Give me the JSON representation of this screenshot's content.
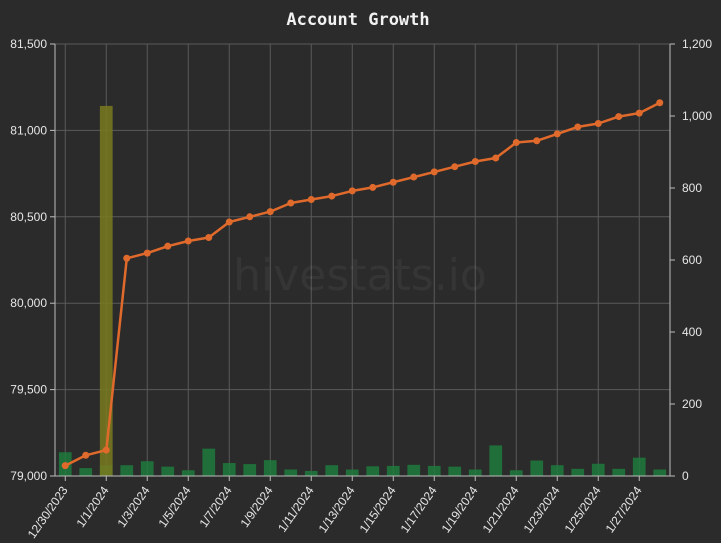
{
  "chart_data": {
    "type": "line",
    "title": "Account Growth",
    "watermark": "hivestats.io",
    "x": [
      "12/30/2023",
      "12/31/2023",
      "1/1/2024",
      "1/2/2024",
      "1/3/2024",
      "1/4/2024",
      "1/5/2024",
      "1/6/2024",
      "1/7/2024",
      "1/8/2024",
      "1/9/2024",
      "1/10/2024",
      "1/11/2024",
      "1/12/2024",
      "1/13/2024",
      "1/14/2024",
      "1/15/2024",
      "1/16/2024",
      "1/17/2024",
      "1/18/2024",
      "1/19/2024",
      "1/20/2024",
      "1/21/2024",
      "1/22/2024",
      "1/23/2024",
      "1/24/2024",
      "1/25/2024",
      "1/26/2024",
      "1/27/2024",
      "1/28/2024"
    ],
    "x_tick_labels": [
      "12/30/2023",
      "1/1/2024",
      "1/3/2024",
      "1/5/2024",
      "1/7/2024",
      "1/9/2024",
      "1/11/2024",
      "1/13/2024",
      "1/15/2024",
      "1/17/2024",
      "1/19/2024",
      "1/21/2024",
      "1/23/2024",
      "1/25/2024",
      "1/27/2024"
    ],
    "y_left": {
      "ylim": [
        79000,
        81500
      ],
      "ticks": [
        "79,000",
        "79,500",
        "80,000",
        "80,500",
        "81,000",
        "81,500"
      ]
    },
    "y_right": {
      "ylim": [
        0,
        1200
      ],
      "ticks": [
        "0",
        "200",
        "400",
        "600",
        "800",
        "1,000",
        "1,200"
      ]
    },
    "grid": true,
    "series": [
      {
        "type": "line",
        "axis": "left",
        "color": "#e06a2c",
        "values": [
          79060,
          79120,
          79150,
          80260,
          80290,
          80330,
          80360,
          80380,
          80470,
          80500,
          80530,
          80580,
          80600,
          80620,
          80650,
          80670,
          80700,
          80730,
          80760,
          80790,
          80820,
          80840,
          80930,
          80940,
          80980,
          81020,
          81040,
          81080,
          81100,
          81160
        ]
      },
      {
        "type": "bar",
        "axis": "right",
        "color": "#1e7a3c",
        "values": [
          66,
          22,
          30,
          30,
          41,
          26,
          16,
          76,
          36,
          33,
          44,
          18,
          14,
          30,
          18,
          27,
          28,
          31,
          28,
          26,
          18,
          85,
          16,
          43,
          30,
          20,
          34,
          20,
          51,
          18
        ]
      },
      {
        "type": "bar",
        "axis": "right",
        "color": "#7a7a1e",
        "values": [
          0,
          0,
          1028,
          0,
          0,
          0,
          0,
          0,
          0,
          0,
          0,
          0,
          0,
          0,
          0,
          0,
          0,
          0,
          0,
          0,
          0,
          0,
          0,
          0,
          0,
          0,
          0,
          0,
          0,
          0
        ]
      }
    ]
  }
}
